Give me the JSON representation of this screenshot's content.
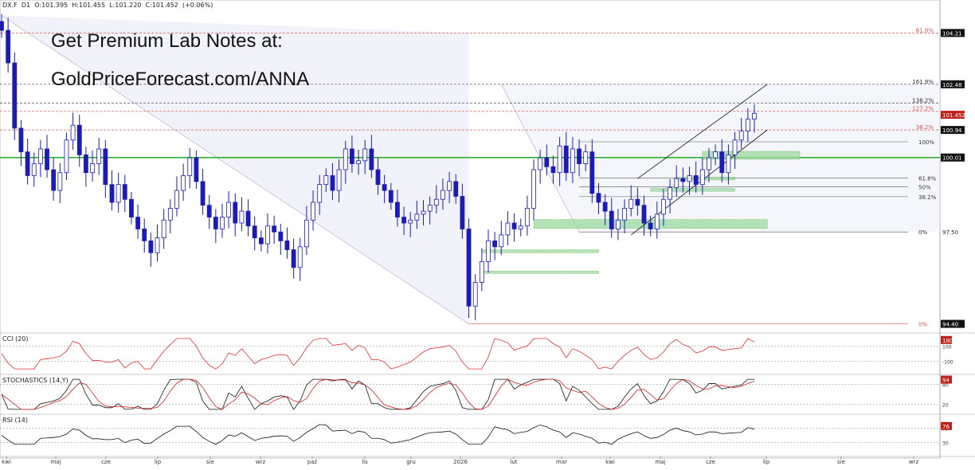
{
  "header": {
    "symbol": "DX.F",
    "timeframe": "D1",
    "open": "O:101.395",
    "high": "H:101.455",
    "low": "L:101.220",
    "close": "C:101.452",
    "change": "(+0.06%)"
  },
  "promo": {
    "line1": "Get Premium Lab Notes at:",
    "line2": "GoldPriceForecast.com/ANNA"
  },
  "colors": {
    "candles": "#1c1cb4",
    "support_line": "#22aa22",
    "resistance_red": "#e05050",
    "demand_zone": "#9ed89e",
    "cci_line": "#e03030",
    "stoch_k": "#111111",
    "stoch_d": "#d02020",
    "rsi_line": "#111111"
  },
  "chart_data": [
    {
      "type": "candlestick",
      "title": "DX.F D1",
      "x_ticks": [
        "kwi",
        "maj",
        "cze",
        "lip",
        "sie",
        "wrz",
        "paź",
        "lis",
        "gru",
        "2026",
        "lut",
        "mar",
        "kwi",
        "maj",
        "cze",
        "lip",
        "sie",
        "wrz"
      ],
      "ylim": [
        94.2,
        105.0
      ],
      "price_ticks": [
        "104.21",
        "102.48",
        "101.452",
        "100.94",
        "100.01",
        "97.50",
        "94.40"
      ],
      "last_price": 101.452,
      "horizontal_levels": [
        {
          "value": 104.21,
          "label": "61.8%",
          "color": "red"
        },
        {
          "value": 102.48,
          "label": "161.8%",
          "color": "black"
        },
        {
          "value": 101.85,
          "label": "138.2%",
          "color": "black"
        },
        {
          "value": 101.57,
          "label": "127.2%",
          "color": "red"
        },
        {
          "value": 100.94,
          "label": "38.2%",
          "color": "red"
        },
        {
          "value": 100.01,
          "label": "",
          "color": "green"
        }
      ],
      "fib_levels": [
        {
          "value": 100.54,
          "label": "100%"
        },
        {
          "value": 99.32,
          "label": "61.8%"
        },
        {
          "value": 99.02,
          "label": "50%"
        },
        {
          "value": 98.69,
          "label": "38.2%"
        },
        {
          "value": 97.5,
          "label": "0%"
        },
        {
          "value": 94.4,
          "label": "0%"
        }
      ],
      "approx_daily_closes": [
        104.3,
        103.2,
        101.0,
        100.2,
        99.4,
        99.8,
        100.3,
        99.6,
        98.9,
        99.5,
        100.6,
        101.1,
        100.1,
        99.5,
        99.8,
        100.3,
        99.1,
        98.5,
        99.1,
        98.6,
        98.0,
        97.6,
        97.2,
        96.8,
        97.3,
        97.9,
        98.3,
        98.9,
        99.4,
        100.0,
        99.2,
        98.4,
        98.0,
        97.6,
        98.0,
        98.5,
        97.8,
        98.2,
        97.7,
        97.3,
        97.1,
        97.7,
        97.5,
        97.2,
        96.9,
        96.3,
        97.0,
        97.9,
        98.5,
        99.1,
        99.4,
        98.9,
        99.6,
        100.3,
        99.8,
        99.9,
        100.3,
        99.6,
        99.1,
        98.9,
        98.5,
        98.0,
        97.8,
        97.9,
        98.1,
        98.2,
        98.4,
        98.6,
        98.9,
        99.2,
        98.7,
        97.6,
        95.0,
        95.8,
        96.5,
        97.2,
        97.0,
        97.4,
        97.8,
        97.6,
        97.7,
        98.3,
        99.6,
        100.0,
        99.7,
        99.5,
        100.4,
        99.5,
        100.3,
        99.8,
        100.2,
        98.8,
        98.5,
        98.2,
        97.6,
        97.9,
        98.3,
        98.6,
        98.4,
        97.8,
        97.6,
        98.1,
        98.6,
        99.0,
        99.3,
        99.2,
        99.4,
        99.1,
        99.6,
        100.0,
        100.2,
        99.5,
        100.1,
        100.6,
        100.9,
        101.3,
        101.5
      ],
      "zones": [
        {
          "label": "demand",
          "from": 99.95,
          "to": 100.22
        },
        {
          "label": "demand",
          "from": 99.25,
          "to": 99.35
        },
        {
          "label": "demand",
          "from": 98.87,
          "to": 98.97
        },
        {
          "label": "demand",
          "from": 97.62,
          "to": 97.92
        },
        {
          "label": "demand",
          "from": 96.8,
          "to": 96.9
        },
        {
          "label": "demand",
          "from": 96.1,
          "to": 96.18
        }
      ]
    },
    {
      "type": "line",
      "title": "CCI (20)",
      "ticks": [
        "100",
        "-100"
      ],
      "last_value": "180",
      "ylim": [
        -230,
        230
      ]
    },
    {
      "type": "line",
      "title": "STOCHASTICS (14,Y)",
      "ticks": [
        "80",
        "20"
      ],
      "last_value": "94",
      "ylim": [
        0,
        100
      ]
    },
    {
      "type": "line",
      "title": "RSI (14)",
      "ticks": [
        "70",
        "30"
      ],
      "last_value": "76",
      "ylim": [
        0,
        100
      ]
    }
  ]
}
